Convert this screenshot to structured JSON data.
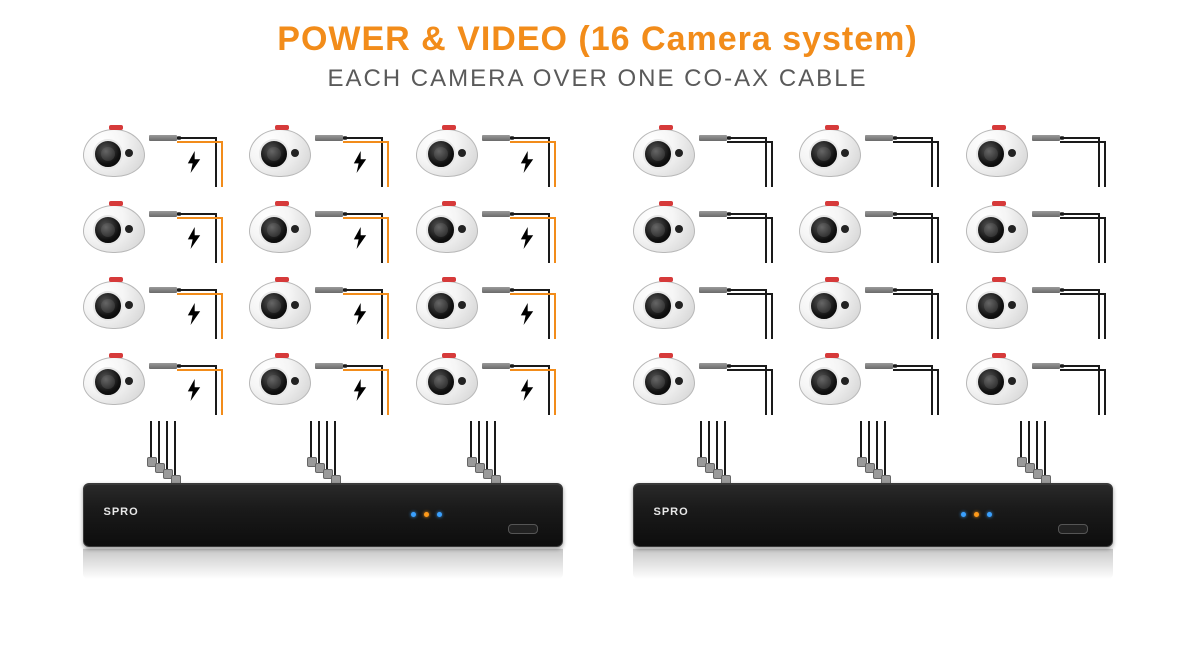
{
  "title": "POWER & VIDEO (16 Camera system)",
  "subtitle": "EACH CAMERA OVER ONE CO-AX CABLE",
  "title_color": "#f28c1a",
  "title_fontsize": 34,
  "subtitle_color": "#5a5a5a",
  "subtitle_fontsize": 24,
  "background_color": "#ffffff",
  "dvr": {
    "brand": "SPRO",
    "body_color": "#1a1a1a",
    "led_colors": [
      "#3aa0ff",
      "#ff9a1a",
      "#3aa0ff"
    ]
  },
  "camera": {
    "body_color": "#f6f6f6",
    "lens_color": "#111111",
    "brand_color": "#d63a3a"
  },
  "systems": [
    {
      "id": "with-power-bolts",
      "wire_power_color": "#f28c1a",
      "wire_video_color": "#1a1a1a",
      "show_bolt": true,
      "columns": 3,
      "rows": 4,
      "drops_per_column": 4
    },
    {
      "id": "coax-only",
      "wire_power_color": "#1a1a1a",
      "wire_video_color": "#1a1a1a",
      "show_bolt": false,
      "columns": 3,
      "rows": 4,
      "drops_per_column": 4
    }
  ]
}
